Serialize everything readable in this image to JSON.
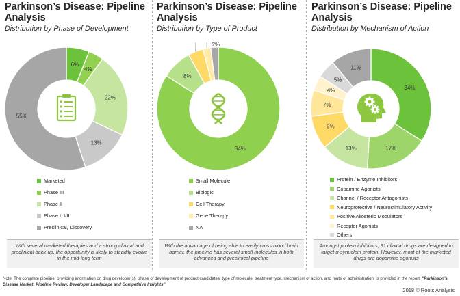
{
  "charts": [
    {
      "title": "Parkinson’s Disease: Pipeline Analysis",
      "subtitle": "Distribution by Phase of Development",
      "icon": "checklist-icon",
      "caption": "With several marketed therapies and a strong clinical and preclinical back-up, the opportunity is likely to steadily evolve in the mid-long term",
      "legend": [
        "Marketed",
        "Phase III",
        "Phase II",
        "Phase I, I/II",
        "Preclinical, Discovery"
      ]
    },
    {
      "title": "Parkinson’s Disease: Pipeline Analysis",
      "subtitle": "Distribution by Type of Product",
      "icon": "dna-icon",
      "caption": "With the advantage of being able to easily cross blood brain barrier, the pipeline has several small molecules in both advanced and preclinical pipeline",
      "legend": [
        "Small Molecule",
        "Biologic",
        "Cell Therapy",
        "Gene Therapy",
        "NA"
      ]
    },
    {
      "title": "Parkinson’s Disease: Pipeline Analysis",
      "subtitle": "Distribution by Mechanism of Action",
      "icon": "brain-gears-icon",
      "caption": "Amongst protein inhibitors, 31 clinical drugs are designed to target α-synuclein protein. However, most of the marketed drugs are dopamine agonists",
      "legend": [
        "Protein / Enzyme Inhibitors",
        "Dopamine Agonists",
        "Channel / Receptor Antagonists",
        "Neuroprotective / Neurostimulatory Activity",
        "Positive Allosteric Modulators",
        "Receptor Agonists",
        "Others",
        "NA"
      ]
    }
  ],
  "chart_data": [
    {
      "type": "pie",
      "variant": "donut",
      "categories": [
        "Marketed",
        "Phase III",
        "Phase II",
        "Phase I, I/II",
        "Preclinical, Discovery"
      ],
      "values": [
        6,
        4,
        22,
        13,
        55
      ],
      "labels": [
        "6%",
        "4%",
        "22%",
        "13%",
        "55%"
      ],
      "colors": [
        "#6dc23c",
        "#92d050",
        "#c6e5a0",
        "#c9c9c9",
        "#a6a6a6"
      ]
    },
    {
      "type": "pie",
      "variant": "donut",
      "categories": [
        "Small Molecule",
        "Biologic",
        "Cell Therapy",
        "Gene Therapy",
        "NA"
      ],
      "values": [
        84,
        8,
        4,
        2,
        2
      ],
      "labels": [
        "84%",
        "8%",
        "4%",
        "2%",
        "2%"
      ],
      "colors": [
        "#8fd14f",
        "#b7e08a",
        "#ffd966",
        "#ffeaa6",
        "#a6a6a6"
      ]
    },
    {
      "type": "pie",
      "variant": "donut",
      "categories": [
        "Protein / Enzyme Inhibitors",
        "Dopamine Agonists",
        "Channel / Receptor Antagonists",
        "Neuroprotective / Neurostimulatory Activity",
        "Positive Allosteric Modulators",
        "Receptor Agonists",
        "Others",
        "NA"
      ],
      "values": [
        34,
        17,
        13,
        9,
        7,
        4,
        5,
        11
      ],
      "labels": [
        "34%",
        "17%",
        "13%",
        "9%",
        "7%",
        "4%",
        "5%",
        "11%"
      ],
      "colors": [
        "#6dc23c",
        "#9ed56a",
        "#c6e5a0",
        "#ffd966",
        "#ffe699",
        "#fff2cc",
        "#d9d9d9",
        "#a6a6a6"
      ]
    }
  ],
  "footer": {
    "note": "Note: The complete pipeline, providing information on drug developer(s), phase of development of product candidates, type of molecule, treatment type, mechanism of action, and route of administration, is provided in the report,",
    "report_title": "“Parkinson’s Disease Market: Pipeline Review, Developer Landscape and Competitive Insights”",
    "copyright": "2018 © Roots Analysis"
  }
}
